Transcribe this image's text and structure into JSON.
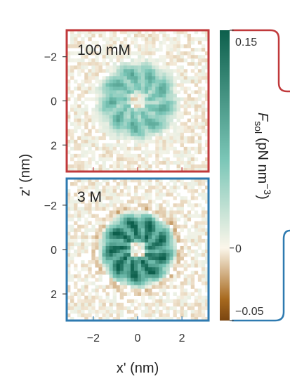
{
  "chart_data": [
    {
      "type": "heatmap",
      "title": "100 mM",
      "xlabel": "",
      "ylabel": "z' (nm)",
      "xlim": [
        -3.2,
        3.2
      ],
      "ylim": [
        -3.2,
        3.2
      ],
      "y_inverted": true,
      "xticks": [
        -2,
        0,
        2
      ],
      "yticks": [
        -2,
        0,
        2
      ],
      "frame_color": "#c0393b",
      "rings": [
        {
          "radius": 0.55,
          "width": 0.25,
          "value": 0.06
        },
        {
          "radius": 1.05,
          "width": 0.35,
          "value": 0.07
        },
        {
          "radius": 1.45,
          "width": 0.35,
          "value": 0.05
        }
      ]
    },
    {
      "type": "heatmap",
      "title": "3 M",
      "xlabel": "x' (nm)",
      "ylabel": "z' (nm)",
      "xlim": [
        -3.2,
        3.2
      ],
      "ylim": [
        -3.2,
        3.2
      ],
      "y_inverted": true,
      "xticks": [
        -2,
        0,
        2
      ],
      "yticks": [
        -2,
        0,
        2
      ],
      "frame_color": "#2e7ab0",
      "rings": [
        {
          "radius": 0.6,
          "width": 0.35,
          "value": 0.14
        },
        {
          "radius": 1.2,
          "width": 0.35,
          "value": 0.15
        },
        {
          "radius": 1.62,
          "width": 0.18,
          "value": 0.02
        },
        {
          "radius": 1.85,
          "width": 0.18,
          "value": -0.02
        }
      ]
    }
  ],
  "colorbar": {
    "label_main": "F",
    "label_sub": "sol",
    "label_unit": " (pN nm",
    "label_exp": "−3",
    "label_close": ")",
    "min": -0.05,
    "max": 0.15,
    "tick_labels": [
      "0.15",
      "0",
      "−0.05"
    ],
    "tick_values": [
      0.15,
      0,
      -0.05
    ],
    "colors": {
      "high": "#0d5f4c",
      "mid": "#7cc7b8",
      "zero": "#fbf6ea",
      "low": "#a86a1f",
      "lowest": "#7a4510"
    }
  },
  "connectors": {
    "top_color": "#c0393b",
    "bottom_color": "#2e7ab0"
  }
}
